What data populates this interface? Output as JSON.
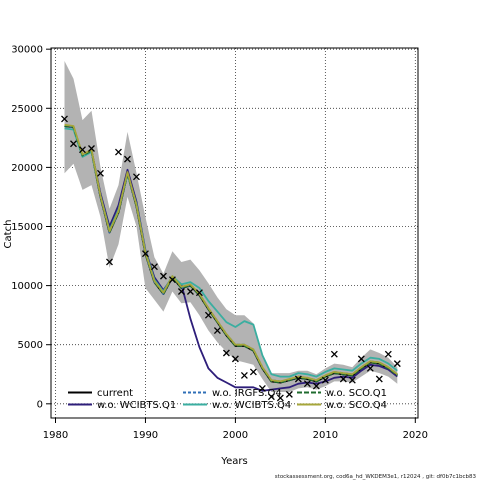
{
  "chart_data": {
    "type": "line",
    "title": "",
    "xlabel": "Years",
    "ylabel": "Catch",
    "xlim": [
      1979.5,
      2020.3
    ],
    "ylim": [
      -1200,
      30100
    ],
    "x_ticks": [
      1980,
      1990,
      2000,
      2010,
      2020
    ],
    "y_ticks": [
      0,
      5000,
      10000,
      15000,
      20000,
      25000,
      30000
    ],
    "grid": true,
    "legend_position": "bottom",
    "legend_columns": 3,
    "confidence_band": {
      "years": [
        1981,
        1982,
        1983,
        1984,
        1985,
        1986,
        1987,
        1988,
        1989,
        1990,
        1991,
        1992,
        1993,
        1994,
        1995,
        1996,
        1997,
        1998,
        1999,
        2000,
        2001,
        2002,
        2003,
        2004,
        2005,
        2006,
        2007,
        2008,
        2009,
        2010,
        2011,
        2012,
        2013,
        2014,
        2015,
        2016,
        2017,
        2018
      ],
      "upper": [
        29000,
        27500,
        24000,
        24800,
        20000,
        16500,
        18500,
        23000,
        19500,
        15800,
        12400,
        11000,
        12900,
        12000,
        12200,
        11300,
        10200,
        9000,
        8000,
        7500,
        7500,
        6800,
        4200,
        2600,
        2600,
        2600,
        2800,
        2800,
        2500,
        3000,
        3400,
        3300,
        3100,
        3900,
        4600,
        4300,
        3900,
        3100
      ],
      "lower": [
        19500,
        20300,
        18100,
        18500,
        15800,
        11500,
        13500,
        17500,
        15000,
        9800,
        8800,
        7800,
        9500,
        8500,
        8600,
        7500,
        6200,
        5200,
        4400,
        3700,
        3500,
        3300,
        2100,
        1000,
        1000,
        1000,
        1300,
        1400,
        1200,
        1500,
        1900,
        1900,
        1800,
        2300,
        2800,
        2600,
        2300,
        1700
      ]
    },
    "x": [
      1981,
      1982,
      1983,
      1984,
      1985,
      1986,
      1987,
      1988,
      1989,
      1990,
      1991,
      1992,
      1993,
      1994,
      1995,
      1996,
      1997,
      1998,
      1999,
      2000,
      2001,
      2002,
      2003,
      2004,
      2005,
      2006,
      2007,
      2008,
      2009,
      2010,
      2011,
      2012,
      2013,
      2014,
      2015,
      2016,
      2017,
      2018
    ],
    "series": [
      {
        "name": "current",
        "color": "#000000",
        "dash": "",
        "values": [
          23500,
          23400,
          21000,
          21400,
          17500,
          14500,
          16200,
          19500,
          16700,
          12700,
          10300,
          9300,
          10700,
          9800,
          10000,
          9200,
          8000,
          6900,
          5800,
          4900,
          4900,
          4500,
          3000,
          1900,
          1800,
          2000,
          2200,
          2100,
          1900,
          2300,
          2600,
          2500,
          2400,
          3000,
          3500,
          3400,
          3000,
          2400
        ]
      },
      {
        "name": "w.o. WCIBTS.Q1",
        "color": "#2e1e7a",
        "dash": "",
        "values": [
          23500,
          23400,
          21000,
          21400,
          17800,
          15000,
          16800,
          19800,
          17100,
          13000,
          10700,
          9600,
          10700,
          10100,
          7200,
          4800,
          3000,
          2200,
          1800,
          1400,
          1400,
          1400,
          1100,
          1200,
          1300,
          1400,
          1700,
          1800,
          1700,
          1900,
          2200,
          2300,
          2200,
          2800,
          3300,
          3200,
          2900,
          2300
        ]
      },
      {
        "name": "w.o. IRGFS.Q4",
        "color": "#2f6fb7",
        "dash": "3,2",
        "values": [
          23500,
          23400,
          21000,
          21400,
          17500,
          14500,
          16200,
          19500,
          16700,
          12700,
          10300,
          9300,
          10700,
          9800,
          10000,
          9300,
          8100,
          7000,
          5900,
          5000,
          5000,
          4600,
          3100,
          2000,
          1900,
          2000,
          2300,
          2200,
          2000,
          2400,
          2700,
          2600,
          2500,
          3100,
          3600,
          3500,
          3100,
          2500
        ]
      },
      {
        "name": "w.o. WCIBTS.Q4",
        "color": "#3aaea0",
        "dash": "",
        "values": [
          23300,
          23200,
          20900,
          21300,
          17600,
          14700,
          16400,
          19400,
          16900,
          12900,
          10500,
          9500,
          10800,
          10100,
          10300,
          9800,
          8700,
          7800,
          6900,
          6500,
          7000,
          6700,
          4100,
          2500,
          2300,
          2300,
          2600,
          2500,
          2300,
          2700,
          3000,
          2900,
          2800,
          3400,
          3900,
          3800,
          3400,
          2800
        ]
      },
      {
        "name": "w.o. SCO.Q1",
        "color": "#1f6b2e",
        "dash": "5,2",
        "values": [
          23500,
          23400,
          21000,
          21400,
          17500,
          14500,
          16200,
          19500,
          16700,
          12700,
          10300,
          9300,
          10700,
          9800,
          10000,
          9200,
          8000,
          6900,
          5800,
          4900,
          4900,
          4500,
          3000,
          1900,
          1800,
          2000,
          2200,
          2100,
          1900,
          2300,
          2600,
          2500,
          2400,
          3000,
          3500,
          3400,
          3000,
          2400
        ]
      },
      {
        "name": "w.o. SCO.Q4",
        "color": "#a6a63a",
        "dash": "",
        "values": [
          23600,
          23500,
          21100,
          21500,
          17600,
          14600,
          16300,
          19600,
          16800,
          12800,
          10400,
          9400,
          10800,
          9900,
          10100,
          9300,
          8100,
          7000,
          5900,
          5000,
          5000,
          4600,
          3100,
          2000,
          1900,
          2100,
          2300,
          2200,
          2000,
          2400,
          2700,
          2600,
          2500,
          3100,
          3600,
          3500,
          3100,
          2500
        ]
      }
    ],
    "observed": {
      "marker": "×",
      "years": [
        1981,
        1982,
        1983,
        1984,
        1985,
        1986,
        1987,
        1988,
        1989,
        1990,
        1991,
        1992,
        1993,
        1994,
        1995,
        1996,
        1997,
        1998,
        1999,
        2000,
        2001,
        2002,
        2003,
        2004,
        2005,
        2006,
        2007,
        2008,
        2009,
        2010,
        2011,
        2012,
        2013,
        2014,
        2015,
        2016,
        2017,
        2018
      ],
      "values": [
        24100,
        22000,
        21500,
        21600,
        19500,
        12000,
        21300,
        20700,
        19200,
        12700,
        11600,
        10800,
        10500,
        9500,
        9500,
        9400,
        7500,
        6200,
        4300,
        3800,
        2400,
        2700,
        1300,
        600,
        500,
        800,
        2100,
        1700,
        1500,
        2000,
        4200,
        2100,
        2000,
        3800,
        3000,
        2100,
        4200,
        3400
      ]
    }
  },
  "footer": {
    "text": "stockassessment.org,  cod6a_hd_WKDEM3e1,  r12024 ,  git: df0b7c1bcb83"
  }
}
